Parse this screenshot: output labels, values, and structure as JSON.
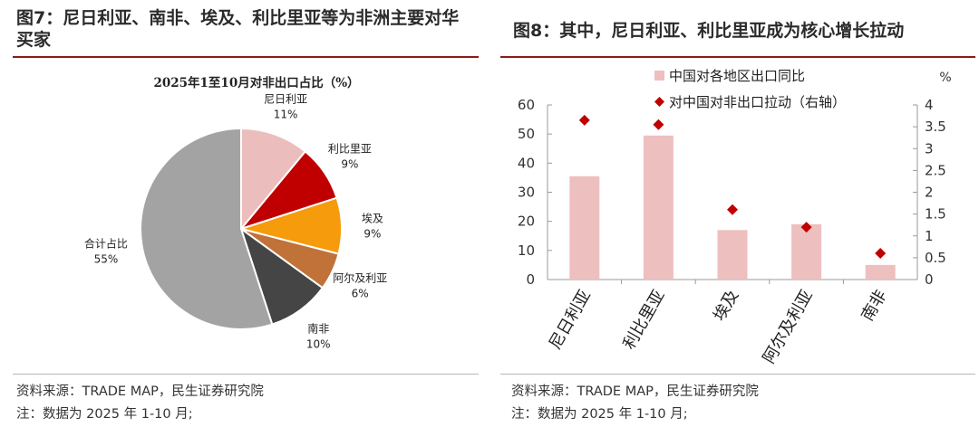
{
  "colors": {
    "title_rule": "#8b1a1a",
    "pie": [
      "#ecbdbd",
      "#c00000",
      "#f59b0c",
      "#c07238",
      "#454545",
      "#a3a3a3"
    ],
    "bar": "#eebfbf",
    "marker": "#c00000"
  },
  "left": {
    "title": "图7：尼日利亚、南非、埃及、利比里亚等为非洲主要对华买家",
    "source": "资料来源：TRADE MAP，民生证券研究院",
    "note": "注：数据为 2025 年 1-10 月;"
  },
  "right": {
    "title": "图8：其中，尼日利亚、利比里亚成为核心增长拉动",
    "source": "资料来源：TRADE MAP，民生证券研究院",
    "note": "注：数据为 2025 年 1-10 月;"
  },
  "chart_data": [
    {
      "type": "pie",
      "title": "2025年1至10月对非出口占比（%）",
      "slices": [
        {
          "label": "尼日利亚",
          "value": 11,
          "display": "11%"
        },
        {
          "label": "利比里亚",
          "value": 9,
          "display": "9%"
        },
        {
          "label": "埃及",
          "value": 9,
          "display": "9%"
        },
        {
          "label": "阿尔及利亚",
          "value": 6,
          "display": "6%"
        },
        {
          "label": "南非",
          "value": 10,
          "display": "10%"
        },
        {
          "label": "合计占比",
          "value": 55,
          "display": "55%"
        }
      ]
    },
    {
      "type": "bar",
      "categories": [
        "尼日利亚",
        "利比里亚",
        "埃及",
        "阿尔及利亚",
        "南非"
      ],
      "series": [
        {
          "name": "中国对各地区出口同比",
          "kind": "bar",
          "axis": "left",
          "values": [
            35.5,
            49.5,
            17,
            19,
            5
          ]
        },
        {
          "name": "对中国对非出口拉动（右轴）",
          "kind": "scatter",
          "axis": "right",
          "values": [
            3.65,
            3.55,
            1.6,
            1.2,
            0.6
          ]
        }
      ],
      "ylim": [
        0,
        60
      ],
      "yticks": [
        0,
        10,
        20,
        30,
        40,
        50,
        60
      ],
      "y2lim": [
        0,
        4
      ],
      "y2ticks": [
        "0",
        "0.5",
        "1",
        "1.5",
        "2",
        "2.5",
        "3",
        "3.5",
        "4"
      ],
      "y2_unit": "%",
      "legend_position": "top"
    }
  ]
}
